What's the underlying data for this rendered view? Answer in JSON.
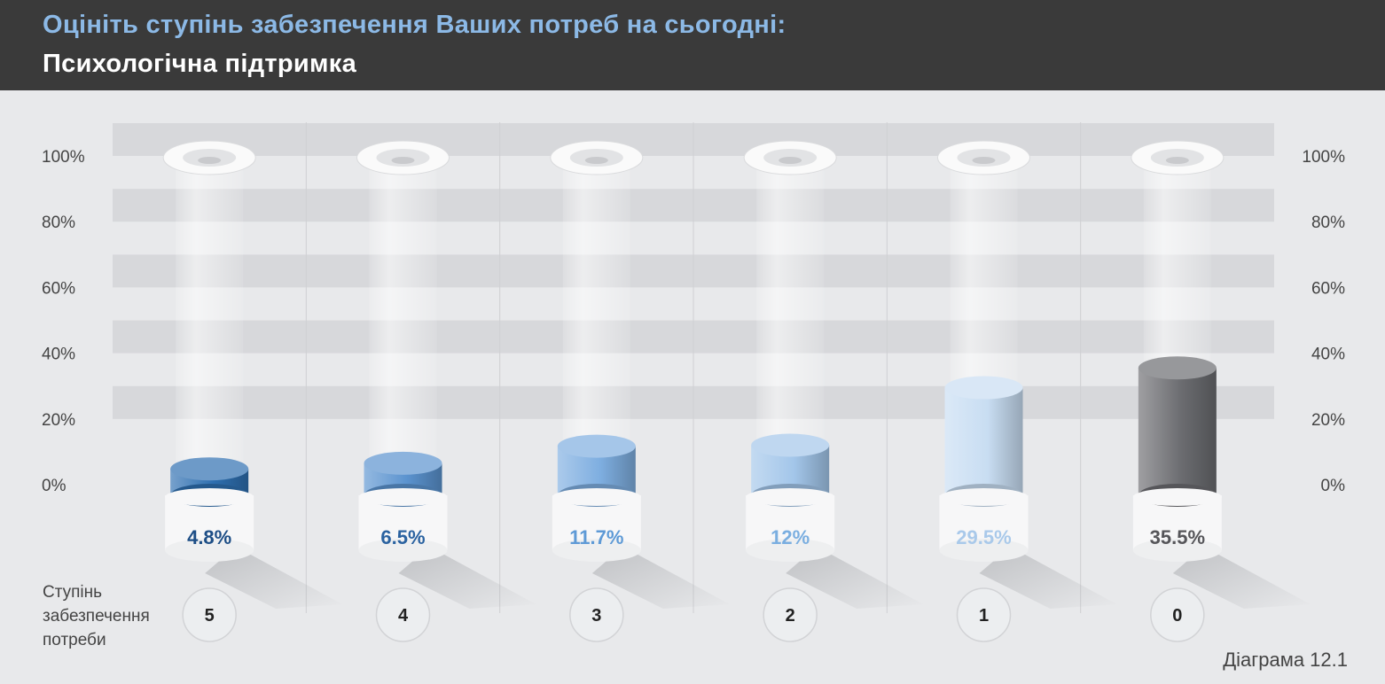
{
  "header": {
    "title": "Оцініть ступінь забезпечення Ваших потреб на сьогодні:",
    "subtitle": "Психологічна підтримка"
  },
  "chart_data": {
    "type": "bar",
    "categories": [
      "5",
      "4",
      "3",
      "2",
      "1",
      "0"
    ],
    "values": [
      4.8,
      6.5,
      11.7,
      12,
      29.5,
      35.5
    ],
    "value_labels": [
      "4.8%",
      "6.5%",
      "11.7%",
      "12%",
      "29.5%",
      "35.5%"
    ],
    "y_ticks": [
      "0%",
      "20%",
      "40%",
      "60%",
      "80%",
      "100%"
    ],
    "ylim": [
      0,
      100
    ],
    "xlabel": [
      "Ступінь",
      "забезпечення",
      "потреби"
    ],
    "colors": [
      "#2e6fb0",
      "#5b93cf",
      "#7eaee0",
      "#a3c6ea",
      "#c8ddf2",
      "#6b6c70"
    ],
    "label_colors": [
      "#1d4e86",
      "#2a62a0",
      "#5e9ad6",
      "#7aaee0",
      "#a9c9ea",
      "#555559"
    ],
    "grid": true,
    "note": "Діаграма 12.1"
  }
}
